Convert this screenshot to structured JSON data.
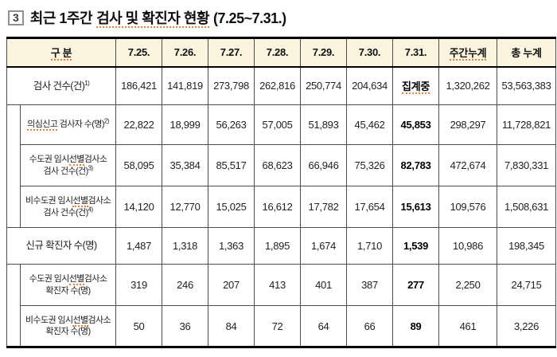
{
  "title": {
    "box_number": "3",
    "prefix": "최근 1주간",
    "highlight": "검사 및 확진자 현황",
    "date_range": "(7.25~7.31.)"
  },
  "table": {
    "headers": [
      "구 분",
      "7.25.",
      "7.26.",
      "7.27.",
      "7.28.",
      "7.29.",
      "7.30.",
      "7.31.",
      "주간누계",
      "총 누계"
    ],
    "bold_column_index": 6,
    "rows": [
      {
        "indent": false,
        "label_lines": [
          [
            {
              "t": "검사 건수(건)"
            },
            {
              "t": "1)",
              "sup": true
            }
          ]
        ],
        "values": [
          "186,421",
          "141,819",
          "273,798",
          "262,816",
          "250,774",
          "204,634",
          "집계중",
          "1,320,262",
          "53,563,383"
        ],
        "value_squiggles": [
          6
        ]
      },
      {
        "indent": true,
        "group_rows": 3,
        "label_lines": [
          [
            {
              "t": "의심신고",
              "sq": true
            },
            {
              "t": " 검사자 수(명)"
            },
            {
              "t": "2)",
              "sup": true
            }
          ]
        ],
        "values": [
          "22,822",
          "18,999",
          "56,263",
          "57,005",
          "51,893",
          "45,462",
          "45,853",
          "298,297",
          "11,728,821"
        ]
      },
      {
        "indent": true,
        "label_lines": [
          [
            {
              "t": "수도권 임시"
            },
            {
              "t": "선별",
              "sq": true
            },
            {
              "t": "검사소"
            }
          ],
          [
            {
              "t": "검사 건수(건)"
            },
            {
              "t": "3)",
              "sup": true
            }
          ]
        ],
        "values": [
          "58,095",
          "35,384",
          "85,517",
          "68,623",
          "66,946",
          "75,326",
          "82,783",
          "472,674",
          "7,830,331"
        ]
      },
      {
        "indent": true,
        "label_lines": [
          [
            {
              "t": "비수도권 임시"
            },
            {
              "t": "선별",
              "sq": true
            },
            {
              "t": "검사소"
            }
          ],
          [
            {
              "t": "검사 건수(건)"
            },
            {
              "t": "4)",
              "sup": true
            }
          ]
        ],
        "values": [
          "14,120",
          "12,770",
          "15,025",
          "16,612",
          "17,782",
          "17,654",
          "15,613",
          "109,576",
          "1,508,631"
        ]
      },
      {
        "indent": false,
        "label_lines": [
          [
            {
              "t": "신규 확진자 수(명)"
            }
          ]
        ],
        "values": [
          "1,487",
          "1,318",
          "1,363",
          "1,895",
          "1,674",
          "1,710",
          "1,539",
          "10,986",
          "198,345"
        ]
      },
      {
        "indent": true,
        "group_rows": 2,
        "label_lines": [
          [
            {
              "t": "수도권 임시"
            },
            {
              "t": "선별",
              "sq": true
            },
            {
              "t": "검사소"
            }
          ],
          [
            {
              "t": "확진자 수(명)"
            }
          ]
        ],
        "values": [
          "319",
          "246",
          "207",
          "413",
          "401",
          "387",
          "277",
          "2,250",
          "24,715"
        ]
      },
      {
        "indent": true,
        "label_lines": [
          [
            {
              "t": "비수도권 임시"
            },
            {
              "t": "선별",
              "sq": true
            },
            {
              "t": "검사소"
            }
          ],
          [
            {
              "t": "확진자 수(명)"
            }
          ]
        ],
        "values": [
          "50",
          "36",
          "84",
          "72",
          "64",
          "66",
          "89",
          "461",
          "3,226"
        ]
      }
    ],
    "colors": {
      "header_bg": "#fbf5e0",
      "squiggle": "#e8823a",
      "border_heavy": "#000000",
      "border_light": "#4d4d4d"
    }
  }
}
